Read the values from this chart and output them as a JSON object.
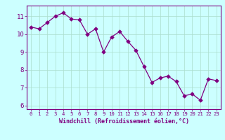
{
  "x": [
    0,
    1,
    2,
    3,
    4,
    5,
    6,
    7,
    8,
    9,
    10,
    11,
    12,
    13,
    14,
    15,
    16,
    17,
    18,
    19,
    20,
    21,
    22,
    23
  ],
  "y": [
    10.4,
    10.3,
    10.65,
    11.0,
    11.2,
    10.85,
    10.8,
    10.0,
    10.3,
    9.0,
    9.85,
    10.15,
    9.6,
    9.1,
    8.2,
    7.3,
    7.55,
    7.65,
    7.35,
    6.55,
    6.65,
    6.3,
    7.5,
    7.4
  ],
  "xlabel": "Windchill (Refroidissement éolien,°C)",
  "ylim": [
    5.8,
    11.6
  ],
  "xlim": [
    -0.5,
    23.5
  ],
  "yticks": [
    6,
    7,
    8,
    9,
    10,
    11
  ],
  "xticks": [
    0,
    1,
    2,
    3,
    4,
    5,
    6,
    7,
    8,
    9,
    10,
    11,
    12,
    13,
    14,
    15,
    16,
    17,
    18,
    19,
    20,
    21,
    22,
    23
  ],
  "line_color": "#800080",
  "marker_color": "#800080",
  "bg_color": "#ccffff",
  "grid_color": "#aaddcc",
  "xlabel_color": "#800080",
  "tick_color": "#800080",
  "spine_color": "#800080"
}
